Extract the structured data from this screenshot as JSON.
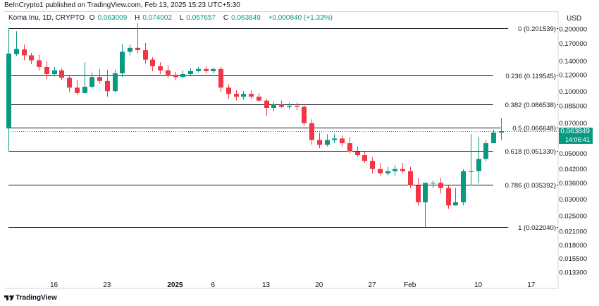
{
  "header": {
    "publisher": "BeInCrypto1 published on TradingView.com, Feb 13, 2025 15:23 UTC+5:30"
  },
  "legend": {
    "symbol": "Koma Inu, 1D, CRYPTO",
    "open_label": "O",
    "open": "0.063009",
    "high_label": "H",
    "high": "0.074002",
    "low_label": "L",
    "low": "0.057657",
    "close_label": "C",
    "close": "0.063849",
    "change": "+0.000840 (+1.33%)"
  },
  "currency": "USD",
  "badge": {
    "price": "0.063849",
    "countdown": "14:06:41"
  },
  "footer": {
    "brand": "TradingView"
  },
  "colors": {
    "up": "#089981",
    "down": "#f23645",
    "fib": "#131722",
    "grid": "#d1d4dc"
  },
  "chart_data": {
    "type": "candlestick",
    "y_scale": "log",
    "y_ticks": [
      "0.200000",
      "0.170000",
      "0.140000",
      "0.120000",
      "0.100000",
      "0.085000",
      "0.070000",
      "0.060000",
      "0.050000",
      "0.042000",
      "0.036000",
      "0.030000",
      "0.025000",
      "0.021000",
      "0.018000",
      "0.015500",
      "0.013300"
    ],
    "x_ticks": [
      {
        "label": "16",
        "bold": false,
        "index": 6
      },
      {
        "label": "23",
        "bold": false,
        "index": 13
      },
      {
        "label": "2025",
        "bold": true,
        "index": 22
      },
      {
        "label": "6",
        "bold": false,
        "index": 27
      },
      {
        "label": "13",
        "bold": false,
        "index": 34
      },
      {
        "label": "20",
        "bold": false,
        "index": 41
      },
      {
        "label": "27",
        "bold": false,
        "index": 48
      },
      {
        "label": "Feb",
        "bold": false,
        "index": 53
      },
      {
        "label": "10",
        "bold": false,
        "index": 62
      },
      {
        "label": "17",
        "bold": false,
        "index": 69
      }
    ],
    "fib_levels": [
      {
        "label": "0 (0.201539)",
        "value": 0.201539
      },
      {
        "label": "0.236 (0.119545)",
        "value": 0.119545
      },
      {
        "label": "0.382 (0.086538)",
        "value": 0.086538
      },
      {
        "label": "0.5 (0.066648)",
        "value": 0.066648
      },
      {
        "label": "0.618 (0.051330)",
        "value": 0.05133
      },
      {
        "label": "0.786 (0.035392)",
        "value": 0.035392
      },
      {
        "label": "1 (0.022040)",
        "value": 0.02204
      }
    ],
    "candles": [
      [
        0.066,
        0.152,
        0.155,
        0.051
      ],
      [
        0.151,
        0.16,
        0.195,
        0.148
      ],
      [
        0.159,
        0.149,
        0.168,
        0.141
      ],
      [
        0.149,
        0.141,
        0.153,
        0.135
      ],
      [
        0.141,
        0.131,
        0.15,
        0.126
      ],
      [
        0.131,
        0.121,
        0.139,
        0.114
      ],
      [
        0.121,
        0.126,
        0.131,
        0.118
      ],
      [
        0.126,
        0.116,
        0.129,
        0.113
      ],
      [
        0.116,
        0.104,
        0.12,
        0.099
      ],
      [
        0.104,
        0.098,
        0.113,
        0.096
      ],
      [
        0.098,
        0.105,
        0.138,
        0.097
      ],
      [
        0.105,
        0.117,
        0.123,
        0.103
      ],
      [
        0.117,
        0.112,
        0.128,
        0.109
      ],
      [
        0.112,
        0.1,
        0.127,
        0.094
      ],
      [
        0.1,
        0.122,
        0.127,
        0.099
      ],
      [
        0.122,
        0.155,
        0.169,
        0.117
      ],
      [
        0.155,
        0.162,
        0.168,
        0.149
      ],
      [
        0.162,
        0.158,
        0.213,
        0.153
      ],
      [
        0.158,
        0.142,
        0.171,
        0.136
      ],
      [
        0.142,
        0.132,
        0.146,
        0.125
      ],
      [
        0.132,
        0.126,
        0.138,
        0.121
      ],
      [
        0.126,
        0.12,
        0.134,
        0.116
      ],
      [
        0.12,
        0.117,
        0.124,
        0.113
      ],
      [
        0.117,
        0.121,
        0.126,
        0.116
      ],
      [
        0.121,
        0.125,
        0.129,
        0.119
      ],
      [
        0.125,
        0.128,
        0.131,
        0.123
      ],
      [
        0.128,
        0.125,
        0.132,
        0.122
      ],
      [
        0.125,
        0.128,
        0.13,
        0.122
      ],
      [
        0.128,
        0.104,
        0.131,
        0.099
      ],
      [
        0.104,
        0.097,
        0.108,
        0.092
      ],
      [
        0.097,
        0.094,
        0.101,
        0.09
      ],
      [
        0.094,
        0.097,
        0.1,
        0.091
      ],
      [
        0.097,
        0.094,
        0.101,
        0.092
      ],
      [
        0.094,
        0.09,
        0.098,
        0.089
      ],
      [
        0.09,
        0.083,
        0.092,
        0.076
      ],
      [
        0.083,
        0.086,
        0.089,
        0.08
      ],
      [
        0.086,
        0.084,
        0.09,
        0.083
      ],
      [
        0.084,
        0.085,
        0.088,
        0.082
      ],
      [
        0.085,
        0.084,
        0.088,
        0.081
      ],
      [
        0.084,
        0.07,
        0.086,
        0.068
      ],
      [
        0.07,
        0.058,
        0.073,
        0.055
      ],
      [
        0.058,
        0.055,
        0.063,
        0.053
      ],
      [
        0.055,
        0.058,
        0.062,
        0.054
      ],
      [
        0.058,
        0.059,
        0.062,
        0.056
      ],
      [
        0.059,
        0.056,
        0.061,
        0.054
      ],
      [
        0.056,
        0.051,
        0.06,
        0.05
      ],
      [
        0.051,
        0.049,
        0.054,
        0.048
      ],
      [
        0.049,
        0.046,
        0.051,
        0.045
      ],
      [
        0.046,
        0.042,
        0.048,
        0.04
      ],
      [
        0.042,
        0.04,
        0.045,
        0.039
      ],
      [
        0.04,
        0.041,
        0.043,
        0.039
      ],
      [
        0.041,
        0.042,
        0.044,
        0.039
      ],
      [
        0.042,
        0.041,
        0.045,
        0.04
      ],
      [
        0.041,
        0.035,
        0.043,
        0.034
      ],
      [
        0.035,
        0.029,
        0.038,
        0.028
      ],
      [
        0.029,
        0.036,
        0.036,
        0.022
      ],
      [
        0.036,
        0.036,
        0.037,
        0.034
      ],
      [
        0.036,
        0.034,
        0.038,
        0.032
      ],
      [
        0.034,
        0.028,
        0.035,
        0.027
      ],
      [
        0.028,
        0.029,
        0.034,
        0.028
      ],
      [
        0.029,
        0.041,
        0.042,
        0.028
      ],
      [
        0.041,
        0.041,
        0.062,
        0.035
      ],
      [
        0.041,
        0.047,
        0.06,
        0.036
      ],
      [
        0.047,
        0.056,
        0.058,
        0.046
      ],
      [
        0.056,
        0.063,
        0.065,
        0.057
      ],
      [
        0.063,
        0.064,
        0.074,
        0.058
      ]
    ]
  }
}
